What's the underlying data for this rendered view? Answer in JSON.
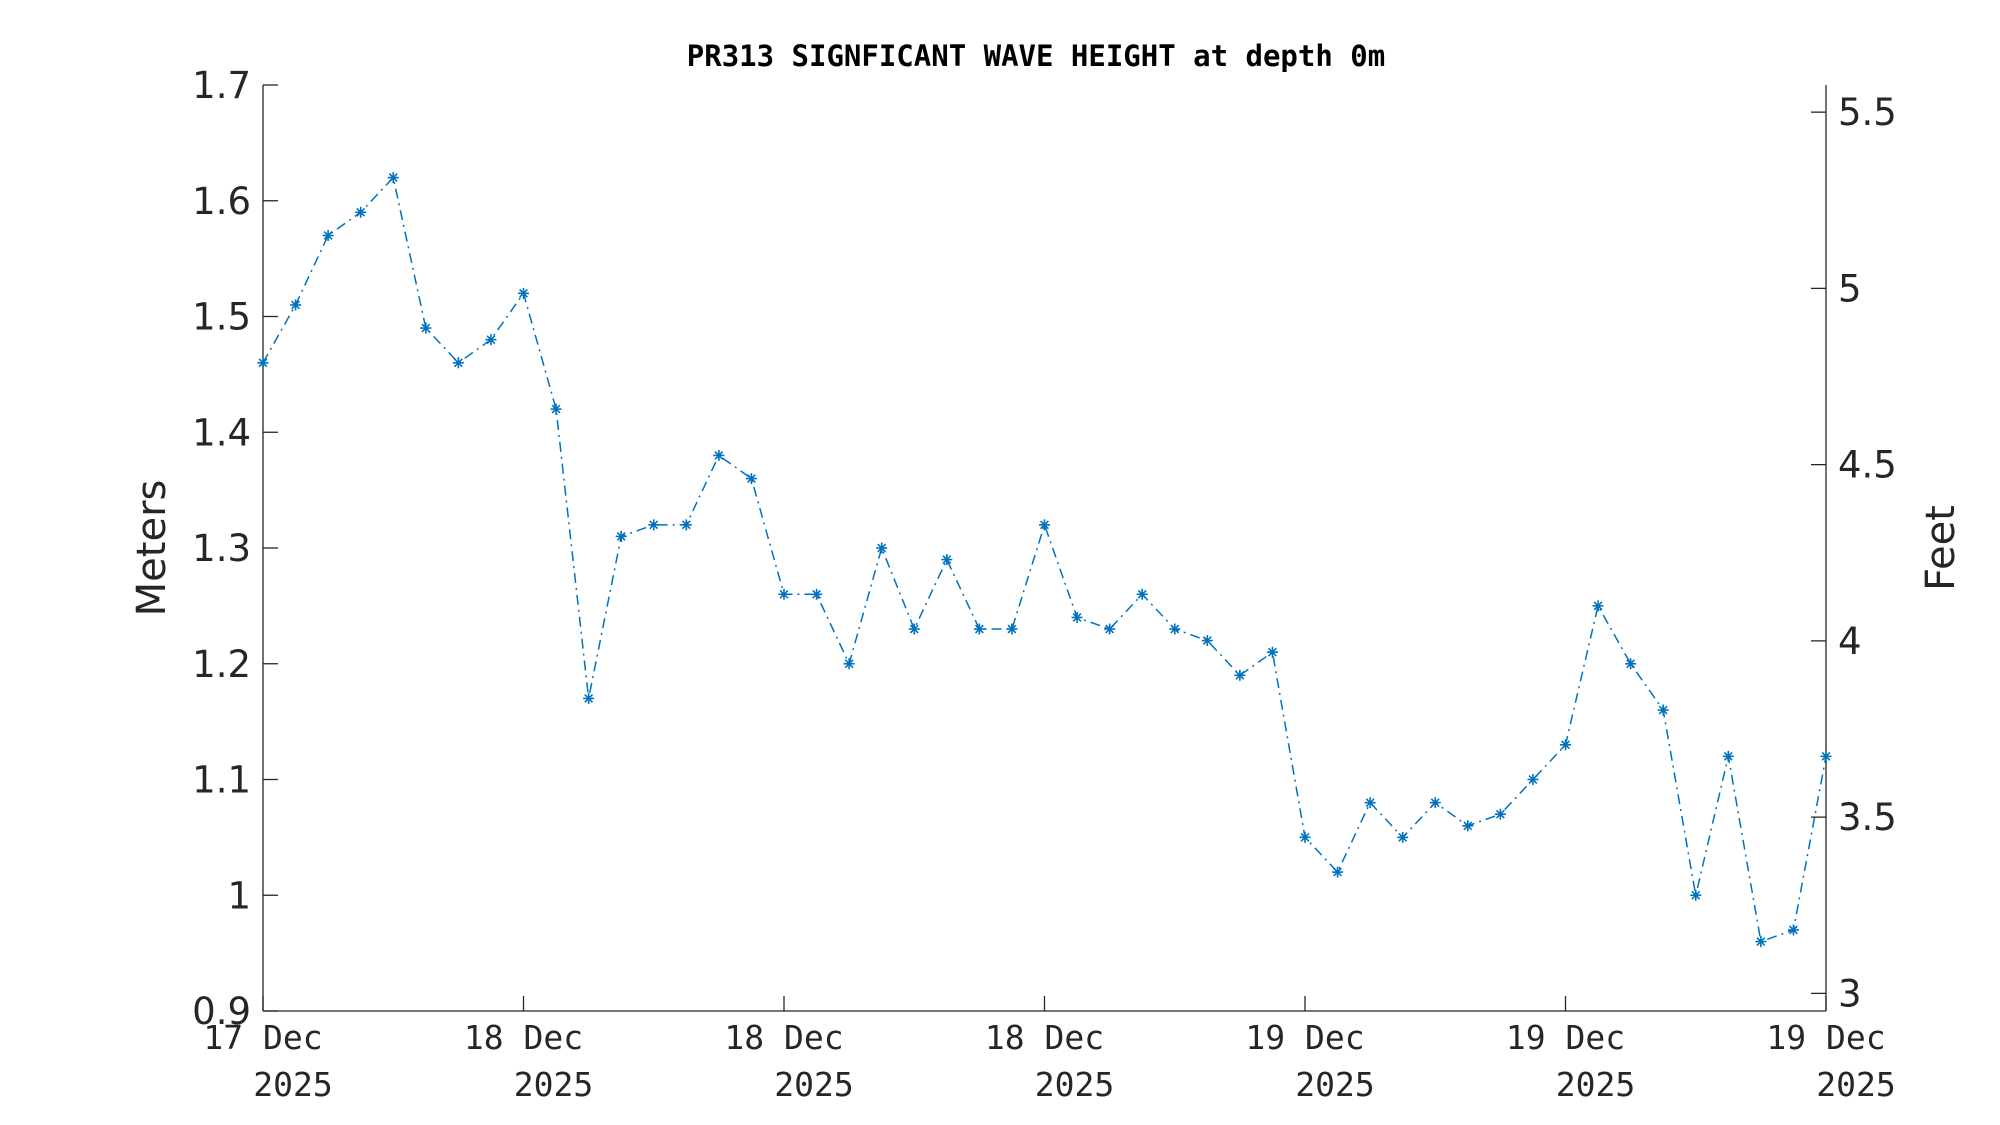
{
  "chart_data": {
    "type": "line",
    "title": "PR313 SIGNFICANT WAVE HEIGHT at depth 0m",
    "ylabel": "Meters",
    "ylabel_right": "Feet",
    "ylim": [
      0.9,
      1.7
    ],
    "yticks": [
      0.9,
      1.0,
      1.1,
      1.2,
      1.3,
      1.4,
      1.5,
      1.6,
      1.7
    ],
    "ytick_labels": [
      "0.9",
      "1",
      "1.1",
      "1.2",
      "1.3",
      "1.4",
      "1.5",
      "1.6",
      "1.7"
    ],
    "ylim_right": [
      2.95,
      5.577
    ],
    "yticks_right": [
      3,
      3.5,
      4,
      4.5,
      5,
      5.5
    ],
    "ytick_labels_right": [
      "3",
      "3.5",
      "4",
      "4.5",
      "5",
      "5.5"
    ],
    "xticks": [
      0,
      8,
      16,
      24,
      32,
      40,
      48
    ],
    "xtick_labels": [
      [
        "17 Dec",
        "2025"
      ],
      [
        "18 Dec",
        "2025"
      ],
      [
        "18 Dec",
        "2025"
      ],
      [
        "18 Dec",
        "2025"
      ],
      [
        "19 Dec",
        "2025"
      ],
      [
        "19 Dec",
        "2025"
      ],
      [
        "19 Dec",
        "2025"
      ]
    ],
    "xlim": [
      0,
      48
    ],
    "series": [
      {
        "color": "#0072BD",
        "marker": "asterisk",
        "line_style": "dash-dot",
        "values": [
          1.46,
          1.51,
          1.57,
          1.59,
          1.62,
          1.49,
          1.46,
          1.48,
          1.52,
          1.42,
          1.17,
          1.31,
          1.32,
          1.32,
          1.38,
          1.36,
          1.26,
          1.26,
          1.2,
          1.3,
          1.23,
          1.29,
          1.23,
          1.23,
          1.32,
          1.24,
          1.23,
          1.26,
          1.23,
          1.22,
          1.19,
          1.21,
          1.05,
          1.02,
          1.08,
          1.05,
          1.08,
          1.06,
          1.07,
          1.1,
          1.13,
          1.25,
          1.2,
          1.16,
          1.0,
          1.12,
          0.96,
          0.97,
          1.12
        ]
      }
    ],
    "grid": false
  }
}
